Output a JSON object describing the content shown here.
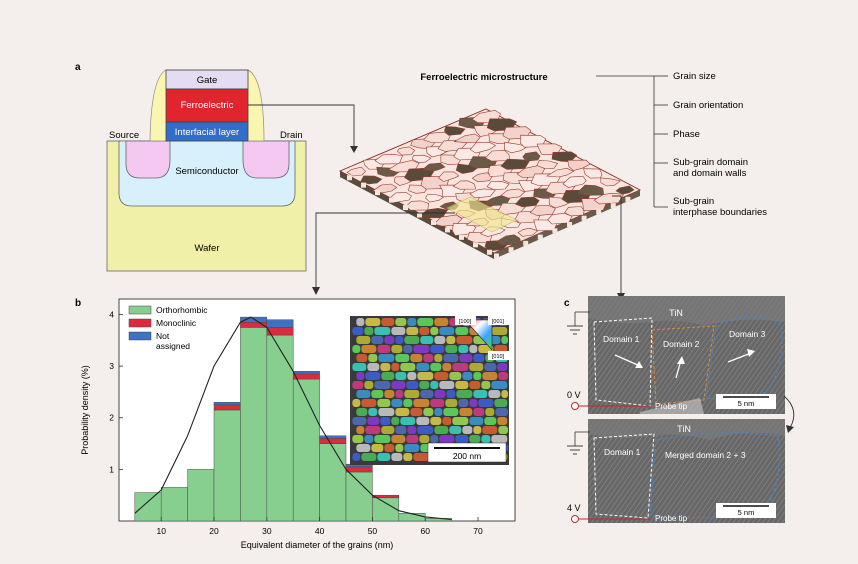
{
  "panel_a": {
    "label": "a",
    "layers": {
      "gate": "Gate",
      "ferroelectric": "Ferroelectric",
      "interfacial": "Interfacial layer",
      "source": "Source",
      "drain": "Drain",
      "semiconductor": "Semiconductor",
      "wafer": "Wafer"
    },
    "microstructure_title": "Ferroelectric microstructure",
    "properties": [
      "Grain size",
      "Grain orientation",
      "Phase",
      "Sub-grain domain\nand domain walls",
      "Sub-grain\ninterphase boundaries"
    ]
  },
  "panel_b": {
    "label": "b",
    "inset": {
      "scalebar": "200 nm",
      "axis_labels": [
        "[100]",
        "[001]",
        "[010]"
      ]
    }
  },
  "panel_c": {
    "label": "c",
    "top": {
      "material": "TiN",
      "domains": [
        "Domain 1",
        "Domain 2",
        "Domain 3"
      ],
      "voltage": "0 V",
      "probe": "Probe tip",
      "scalebar": "5 nm"
    },
    "bottom": {
      "material": "TiN",
      "domains": [
        "Domain 1",
        "Merged domain 2 + 3"
      ],
      "voltage": "4 V",
      "probe": "Probe tip",
      "scalebar": "5 nm"
    }
  },
  "chart_data": {
    "type": "bar",
    "xlabel": "Equivalent diameter of the grains (nm)",
    "ylabel": "Probability density (%)",
    "xlim": [
      2,
      77
    ],
    "ylim": [
      0,
      4.3
    ],
    "xticks": [
      10,
      20,
      30,
      40,
      50,
      60,
      70
    ],
    "yticks": [
      1,
      2,
      3,
      4
    ],
    "bin_width": 5,
    "bin_starts": [
      5,
      10,
      15,
      20,
      25,
      30,
      35,
      40,
      45,
      50,
      55,
      60
    ],
    "series": [
      {
        "name": "Orthorhombic",
        "color": "#86cf8e",
        "values": [
          0.55,
          0.65,
          1.0,
          2.15,
          3.75,
          3.6,
          2.75,
          1.5,
          0.95,
          0.45,
          0.15,
          0.05
        ]
      },
      {
        "name": "Monoclinic",
        "color": "#dd2a3c",
        "values": [
          0.0,
          0.0,
          0.0,
          0.1,
          0.1,
          0.15,
          0.1,
          0.1,
          0.1,
          0.05,
          0.0,
          0.0
        ]
      },
      {
        "name": "Not\nassigned",
        "color": "#3c72c4",
        "values": [
          0.0,
          0.0,
          0.0,
          0.05,
          0.1,
          0.15,
          0.05,
          0.05,
          0.05,
          0.0,
          0.0,
          0.0
        ]
      }
    ],
    "fit_curve": {
      "x": [
        5,
        10,
        15,
        20,
        25,
        27,
        30,
        35,
        40,
        45,
        50,
        55,
        60,
        65
      ],
      "y": [
        0.15,
        0.6,
        1.65,
        3.0,
        3.85,
        3.95,
        3.75,
        2.9,
        1.85,
        1.0,
        0.5,
        0.2,
        0.08,
        0.03
      ]
    }
  }
}
